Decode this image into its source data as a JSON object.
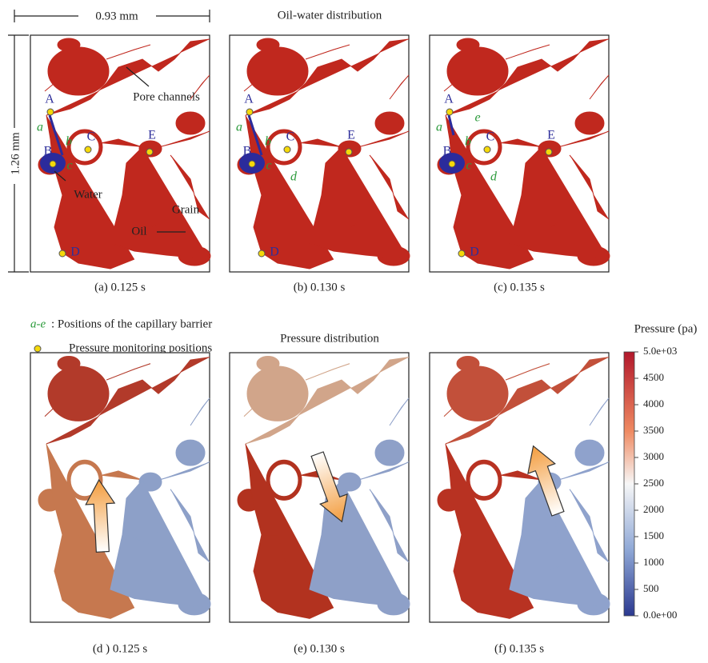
{
  "header": {
    "title": "Oil-water distribution",
    "scale_width": "0.93 mm",
    "scale_height": "1.26 mm"
  },
  "panels": [
    {
      "caption": "(a) 0.125 s",
      "points": [
        "A",
        "B",
        "C",
        "D",
        "E"
      ],
      "barriers": [
        "a",
        "b",
        "c"
      ],
      "annotations": [
        "Pore channels",
        "Water",
        "Grain",
        "Oil"
      ]
    },
    {
      "caption": "(b) 0.130 s",
      "points": [
        "A",
        "B",
        "C",
        "D",
        "E"
      ],
      "barriers": [
        "a",
        "b",
        "c",
        "d"
      ]
    },
    {
      "caption": "(c) 0.135 s",
      "points": [
        "A",
        "B",
        "C",
        "D",
        "E"
      ],
      "barriers": [
        "a",
        "b",
        "c",
        "d",
        "e"
      ]
    }
  ],
  "legend": {
    "barrier_range": "a-e",
    "barrier_text": ": Positions of the capillary barrier",
    "monitor_text": "Pressure monitoring positions"
  },
  "pressure": {
    "title": "Pressure distribution",
    "panels": [
      "(d ) 0.125 s",
      "(e) 0.130 s",
      "(f) 0.135 s"
    ],
    "colorbar": {
      "title": "Pressure (pa)",
      "ticks": [
        "5.0e+03",
        "4500",
        "4000",
        "3500",
        "3000",
        "2500",
        "2000",
        "1500",
        "1000",
        "500",
        "0.0e+00"
      ]
    }
  }
}
